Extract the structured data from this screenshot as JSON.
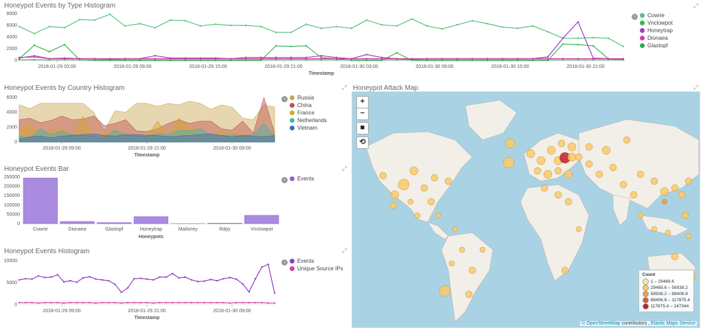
{
  "panels": {
    "type_hist": {
      "title": "Honeypot Events by Type Histogram",
      "xlabel": "Timestamp",
      "y_ticks": [
        "8000",
        "6000",
        "4000",
        "2000",
        "0"
      ],
      "x_ticks": [
        "2018-01-29 03:00",
        "2018-01-29 09:00",
        "2018-01-29 15:00",
        "2018-01-29 21:00",
        "2018-01-30 03:00",
        "2018-01-30 09:00",
        "2018-01-30 15:00",
        "2018-01-30 21:00"
      ],
      "legend": [
        {
          "label": "Cowrie",
          "color": "#57c17b"
        },
        {
          "label": "Vnclowpot",
          "color": "#3ab54a"
        },
        {
          "label": "Honeytrap",
          "color": "#9d3fc4"
        },
        {
          "label": "Dionaea",
          "color": "#d6409f"
        },
        {
          "label": "Glastopf",
          "color": "#33a65c"
        }
      ]
    },
    "country_hist": {
      "title": "Honeypot Events by Country Histogram",
      "xlabel": "Timestamp",
      "y_ticks": [
        "6000",
        "4000",
        "2000",
        "0"
      ],
      "x_ticks": [
        "2018-01-29 09:00",
        "2018-01-29 21:00",
        "2018-01-30 09:00"
      ],
      "legend": [
        {
          "label": "Russia",
          "color": "#c9a64f"
        },
        {
          "label": "China",
          "color": "#bf4f4f"
        },
        {
          "label": "France",
          "color": "#d4a72c"
        },
        {
          "label": "Netherlands",
          "color": "#3fb5b0"
        },
        {
          "label": "Vietnam",
          "color": "#3f6ab8"
        }
      ]
    },
    "bar": {
      "title": "Honeypot Events Bar",
      "xlabel": "Honeypots",
      "y_ticks": [
        "250000",
        "200000",
        "150000",
        "100000",
        "50000",
        "0"
      ],
      "legend": [
        {
          "label": "Events",
          "color": "#8d5fd3"
        }
      ]
    },
    "events_hist": {
      "title": "Honeypot Events Histogram",
      "xlabel": "Timestamp",
      "y_ticks": [
        "10000",
        "5000",
        "0"
      ],
      "x_ticks": [
        "2018-01-29 09:00",
        "2018-01-29 21:00",
        "2018-01-30 09:00"
      ],
      "legend": [
        {
          "label": "Events",
          "color": "#8d3fc4"
        },
        {
          "label": "Unique Source IPs",
          "color": "#d6409f"
        }
      ]
    },
    "map": {
      "title": "Honeypot Attack Map",
      "buttons": [
        "+",
        "−",
        "■",
        "⟲"
      ],
      "legend_title": "Count",
      "legend": [
        {
          "label": "1 – 29469.6",
          "color": "#fde9a3"
        },
        {
          "label": "29469.6 – 58938.2",
          "color": "#fbc96a"
        },
        {
          "label": "58938.2 – 88406.8",
          "color": "#f49a48"
        },
        {
          "label": "88406.8 – 117875.4",
          "color": "#e1533a"
        },
        {
          "label": "117875.4 – 147344",
          "color": "#bd1f2e"
        }
      ],
      "attribution": {
        "osm": "© OpenStreetMap",
        "mid": " contributors , ",
        "ems": "Elastic Maps Service"
      }
    }
  },
  "chart_data": [
    {
      "type": "line",
      "title": "Honeypot Events by Type Histogram",
      "xlabel": "Timestamp",
      "ylim": [
        0,
        8000
      ],
      "series": [
        {
          "name": "Cowrie",
          "values": [
            5800,
            4600,
            5800,
            5600,
            7000,
            6900,
            7900,
            5900,
            6300,
            5600,
            6900,
            6800,
            5900,
            6200,
            6000,
            6000,
            5800,
            4800,
            4800,
            6200,
            5500,
            5800,
            5500,
            6900,
            6100,
            5900,
            7100,
            5900,
            5400,
            6100,
            6800,
            6300,
            5700,
            5500,
            5900,
            4900,
            3800,
            3800,
            3900,
            3800,
            2400
          ]
        },
        {
          "name": "Vnclowpot",
          "values": [
            300,
            2600,
            1500,
            2700,
            100,
            0,
            0,
            0,
            0,
            0,
            0,
            0,
            0,
            0,
            0,
            0,
            0,
            2500,
            2400,
            2500,
            500,
            300,
            0,
            0,
            0,
            1300,
            0,
            0,
            0,
            0,
            0,
            0,
            0,
            0,
            0,
            0,
            2800,
            2700,
            2500,
            300,
            100
          ]
        },
        {
          "name": "Honeytrap",
          "values": [
            500,
            600,
            300,
            400,
            300,
            300,
            200,
            300,
            300,
            800,
            400,
            400,
            400,
            400,
            300,
            500,
            500,
            500,
            500,
            500,
            800,
            500,
            300,
            1000,
            500,
            300,
            200,
            300,
            300,
            300,
            300,
            300,
            300,
            300,
            300,
            600,
            3800,
            6600,
            400,
            300,
            200
          ]
        },
        {
          "name": "Dionaea",
          "values": [
            400,
            800,
            300,
            300,
            300,
            300,
            300,
            300,
            300,
            300,
            300,
            300,
            300,
            300,
            300,
            300,
            300,
            300,
            300,
            300,
            300,
            300,
            300,
            300,
            300,
            300,
            300,
            300,
            300,
            300,
            300,
            300,
            300,
            300,
            300,
            300,
            300,
            300,
            300,
            300,
            300
          ]
        },
        {
          "name": "Glastopf",
          "values": [
            100,
            100,
            100,
            100,
            100,
            100,
            100,
            100,
            100,
            100,
            100,
            100,
            100,
            100,
            100,
            100,
            100,
            100,
            100,
            100,
            100,
            100,
            100,
            100,
            100,
            100,
            100,
            100,
            100,
            100,
            100,
            100,
            100,
            100,
            100,
            100,
            100,
            100,
            100,
            100,
            100
          ]
        }
      ]
    },
    {
      "type": "area",
      "title": "Honeypot Events by Country Histogram",
      "xlabel": "Timestamp",
      "ylim": [
        0,
        6000
      ],
      "series": [
        {
          "name": "Russia",
          "values": [
            5000,
            4500,
            5200,
            5200,
            5200,
            5200,
            5200,
            4000,
            1500,
            4200,
            4000,
            5200,
            5200,
            4800,
            5200,
            5000,
            5500,
            5200,
            4400,
            5000,
            4700,
            3200,
            3000,
            5000,
            4700
          ]
        },
        {
          "name": "China",
          "values": [
            3000,
            3200,
            2600,
            2900,
            3500,
            3000,
            3100,
            3500,
            2200,
            2500,
            3000,
            1500,
            1400,
            1800,
            2500,
            3000,
            2500,
            2800,
            2800,
            1800,
            1600,
            2800,
            1200,
            6000,
            1200
          ]
        },
        {
          "name": "France",
          "values": [
            1500,
            2500,
            1000,
            1500,
            1800,
            800,
            3500,
            500,
            1500,
            1000,
            1200,
            1000,
            800,
            2800,
            800,
            3200,
            2000,
            1500,
            1000,
            1600,
            1200,
            900,
            1000,
            1000,
            1200
          ]
        },
        {
          "name": "Netherlands",
          "values": [
            800,
            600,
            1800,
            1000,
            1500,
            1000,
            900,
            800,
            600,
            1600,
            1000,
            800,
            800,
            1200,
            1000,
            1600,
            1500,
            1800,
            1000,
            900,
            1000,
            800,
            1000,
            2500,
            800
          ]
        },
        {
          "name": "Vietnam",
          "values": [
            400,
            700,
            800,
            600,
            800,
            900,
            1000,
            1100,
            900,
            800,
            1000,
            1000,
            900,
            900,
            700,
            800,
            900,
            1000,
            1100,
            900,
            700,
            900,
            800,
            700,
            900
          ]
        }
      ]
    },
    {
      "type": "bar",
      "title": "Honeypot Events Bar",
      "xlabel": "Honeypots",
      "categories": [
        "Cowrie",
        "Dionaea",
        "Glastopf",
        "Honeytrap",
        "Mailoney",
        "Rdpy",
        "Vnclowpot"
      ],
      "values": [
        245000,
        12000,
        6000,
        38000,
        500,
        3000,
        45000
      ],
      "ylim": [
        0,
        250000
      ]
    },
    {
      "type": "line",
      "title": "Honeypot Events Histogram",
      "xlabel": "Timestamp",
      "ylim": [
        0,
        11000
      ],
      "series": [
        {
          "name": "Events",
          "values": [
            6200,
            6500,
            6400,
            7200,
            6800,
            6900,
            7500,
            5700,
            6000,
            5600,
            6700,
            7000,
            6400,
            6200,
            6000,
            5100,
            3100,
            4200,
            6500,
            6600,
            6400,
            6200,
            6900,
            6900,
            7800,
            6700,
            6900,
            6200,
            5800,
            5900,
            6300,
            6000,
            6500,
            6800,
            6400,
            5200,
            3200,
            6500,
            9400,
            10100,
            2900
          ]
        },
        {
          "name": "Unique Source IPs",
          "values": [
            500,
            500,
            500,
            400,
            500,
            500,
            500,
            400,
            500,
            500,
            500,
            500,
            400,
            500,
            500,
            500,
            400,
            500,
            500,
            500,
            500,
            400,
            500,
            500,
            500,
            500,
            500,
            500,
            500,
            500,
            500,
            500,
            500,
            400,
            500,
            500,
            500,
            500,
            500,
            400,
            400
          ]
        }
      ]
    }
  ]
}
